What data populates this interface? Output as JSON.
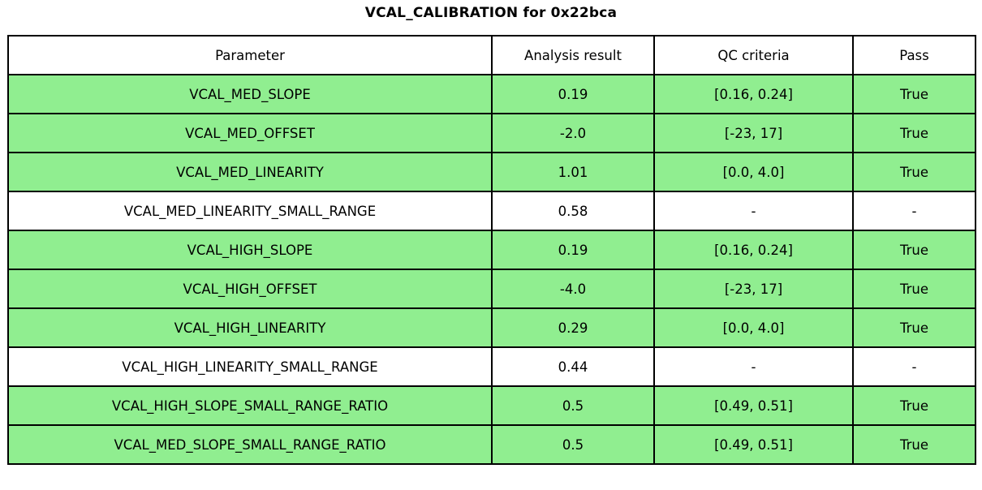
{
  "title": "VCAL_CALIBRATION for 0x22bca",
  "colors": {
    "pass_green": "#90EE90",
    "neutral_white": "#FFFFFF",
    "border": "#000000",
    "text": "#000000"
  },
  "table": {
    "columns": [
      "Parameter",
      "Analysis result",
      "QC criteria",
      "Pass"
    ],
    "rows": [
      {
        "parameter": "VCAL_MED_SLOPE",
        "result": "0.19",
        "criteria": "[0.16, 0.24]",
        "pass": "True",
        "highlight": true
      },
      {
        "parameter": "VCAL_MED_OFFSET",
        "result": "-2.0",
        "criteria": "[-23, 17]",
        "pass": "True",
        "highlight": true
      },
      {
        "parameter": "VCAL_MED_LINEARITY",
        "result": "1.01",
        "criteria": "[0.0, 4.0]",
        "pass": "True",
        "highlight": true
      },
      {
        "parameter": "VCAL_MED_LINEARITY_SMALL_RANGE",
        "result": "0.58",
        "criteria": "-",
        "pass": "-",
        "highlight": false
      },
      {
        "parameter": "VCAL_HIGH_SLOPE",
        "result": "0.19",
        "criteria": "[0.16, 0.24]",
        "pass": "True",
        "highlight": true
      },
      {
        "parameter": "VCAL_HIGH_OFFSET",
        "result": "-4.0",
        "criteria": "[-23, 17]",
        "pass": "True",
        "highlight": true
      },
      {
        "parameter": "VCAL_HIGH_LINEARITY",
        "result": "0.29",
        "criteria": "[0.0, 4.0]",
        "pass": "True",
        "highlight": true
      },
      {
        "parameter": "VCAL_HIGH_LINEARITY_SMALL_RANGE",
        "result": "0.44",
        "criteria": "-",
        "pass": "-",
        "highlight": false
      },
      {
        "parameter": "VCAL_HIGH_SLOPE_SMALL_RANGE_RATIO",
        "result": "0.5",
        "criteria": "[0.49, 0.51]",
        "pass": "True",
        "highlight": true
      },
      {
        "parameter": "VCAL_MED_SLOPE_SMALL_RANGE_RATIO",
        "result": "0.5",
        "criteria": "[0.49, 0.51]",
        "pass": "True",
        "highlight": true
      }
    ]
  },
  "chart_data": {
    "type": "table",
    "title": "VCAL_CALIBRATION for 0x22bca",
    "columns": [
      "Parameter",
      "Analysis result",
      "QC criteria",
      "Pass"
    ],
    "rows": [
      [
        "VCAL_MED_SLOPE",
        "0.19",
        "[0.16, 0.24]",
        "True"
      ],
      [
        "VCAL_MED_OFFSET",
        "-2.0",
        "[-23, 17]",
        "True"
      ],
      [
        "VCAL_MED_LINEARITY",
        "1.01",
        "[0.0, 4.0]",
        "True"
      ],
      [
        "VCAL_MED_LINEARITY_SMALL_RANGE",
        "0.58",
        "-",
        "-"
      ],
      [
        "VCAL_HIGH_SLOPE",
        "0.19",
        "[0.16, 0.24]",
        "True"
      ],
      [
        "VCAL_HIGH_OFFSET",
        "-4.0",
        "[-23, 17]",
        "True"
      ],
      [
        "VCAL_HIGH_LINEARITY",
        "0.29",
        "[0.0, 4.0]",
        "True"
      ],
      [
        "VCAL_HIGH_LINEARITY_SMALL_RANGE",
        "0.44",
        "-",
        "-"
      ],
      [
        "VCAL_HIGH_SLOPE_SMALL_RANGE_RATIO",
        "0.5",
        "[0.49, 0.51]",
        "True"
      ],
      [
        "VCAL_MED_SLOPE_SMALL_RANGE_RATIO",
        "0.5",
        "[0.49, 0.51]",
        "True"
      ]
    ],
    "row_pass_highlight": [
      true,
      true,
      true,
      false,
      true,
      true,
      true,
      false,
      true,
      true
    ],
    "layout_hints": {
      "title_position": "top-center",
      "header_background": "#FFFFFF",
      "pass_row_background": "#90EE90",
      "no_criteria_row_background": "#FFFFFF",
      "grid": "all-cell-borders"
    }
  }
}
